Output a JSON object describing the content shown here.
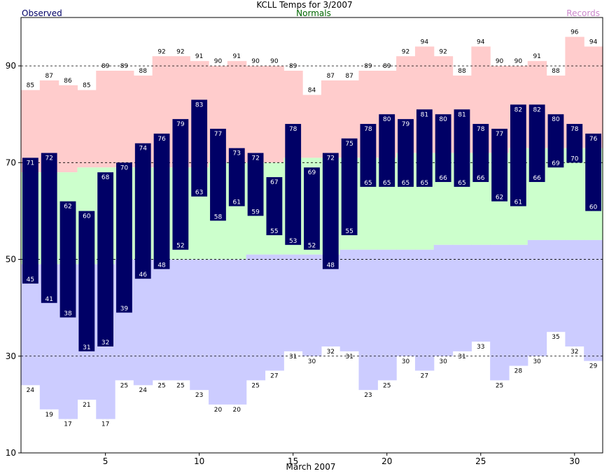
{
  "chart_data": {
    "type": "bar",
    "title": "KCLL Temps for 3/2007",
    "xlabel": "March 2007",
    "legend": {
      "observed": "Observed",
      "normals": "Normals",
      "records": "Records",
      "observed_color": "#000066",
      "normals_color": "#006600",
      "records_color": "#cc88cc"
    },
    "colors": {
      "observed_bar": "#000066",
      "record_high_fill": "#ffcccc",
      "normal_fill": "#ccffcc",
      "record_low_fill": "#ccccff"
    },
    "ylim": [
      10,
      100
    ],
    "yticks": [
      10,
      30,
      50,
      70,
      90
    ],
    "xticks": [
      5,
      10,
      15,
      20,
      25,
      30
    ],
    "days": [
      1,
      2,
      3,
      4,
      5,
      6,
      7,
      8,
      9,
      10,
      11,
      12,
      13,
      14,
      15,
      16,
      17,
      18,
      19,
      20,
      21,
      22,
      23,
      24,
      25,
      26,
      27,
      28,
      29,
      30,
      31
    ],
    "observed_high": [
      71,
      72,
      62,
      60,
      68,
      70,
      74,
      76,
      79,
      83,
      77,
      73,
      72,
      67,
      78,
      69,
      72,
      75,
      78,
      80,
      79,
      81,
      80,
      81,
      78,
      77,
      82,
      82,
      80,
      78,
      76
    ],
    "observed_low": [
      45,
      41,
      38,
      31,
      32,
      39,
      46,
      48,
      52,
      63,
      58,
      61,
      59,
      55,
      53,
      52,
      48,
      55,
      65,
      65,
      65,
      65,
      66,
      65,
      66,
      62,
      61,
      66,
      69,
      70,
      60
    ],
    "record_high": [
      85,
      87,
      86,
      85,
      89,
      89,
      88,
      92,
      92,
      91,
      90,
      91,
      90,
      90,
      89,
      84,
      87,
      87,
      89,
      89,
      92,
      94,
      92,
      88,
      94,
      90,
      90,
      91,
      88,
      96,
      94
    ],
    "record_low": [
      24,
      19,
      17,
      21,
      17,
      25,
      24,
      25,
      25,
      23,
      20,
      20,
      25,
      27,
      31,
      30,
      32,
      31,
      23,
      25,
      30,
      27,
      30,
      31,
      33,
      25,
      28,
      30,
      35,
      32,
      29
    ],
    "normal_high": [
      68,
      68,
      68,
      69,
      69,
      69,
      69,
      69,
      69,
      69,
      70,
      70,
      70,
      70,
      71,
      71,
      71,
      71,
      71,
      71,
      72,
      72,
      72,
      72,
      72,
      72,
      73,
      73,
      73,
      73,
      73
    ],
    "normal_low": [
      49,
      49,
      49,
      49,
      49,
      50,
      50,
      50,
      50,
      50,
      50,
      50,
      51,
      51,
      51,
      51,
      51,
      52,
      52,
      52,
      52,
      52,
      53,
      53,
      53,
      53,
      53,
      54,
      54,
      54,
      54
    ]
  }
}
